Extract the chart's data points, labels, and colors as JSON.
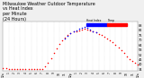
{
  "title": "Milwaukee Weather Outdoor Temperature\nvs Heat Index\nper Minute\n(24 Hours)",
  "title_fontsize": 3.5,
  "bg_color": "#f0f0f0",
  "plot_bg_color": "#ffffff",
  "temp_color": "#ff0000",
  "heat_color": "#0000ff",
  "legend_temp_label": "Temp",
  "legend_heat_label": "Heat Index",
  "ylabel_right_ticks": [
    34,
    40,
    46,
    52,
    58,
    64,
    70,
    76,
    82,
    88
  ],
  "ylim": [
    32,
    92
  ],
  "xlim": [
    0,
    1440
  ],
  "grid_color": "#cccccc",
  "temp_data_x": [
    0,
    30,
    60,
    90,
    120,
    150,
    180,
    210,
    240,
    270,
    300,
    330,
    360,
    390,
    420,
    450,
    480,
    510,
    540,
    570,
    600,
    630,
    660,
    690,
    720,
    750,
    780,
    810,
    840,
    870,
    900,
    930,
    960,
    990,
    1020,
    1050,
    1080,
    1110,
    1140,
    1170,
    1200,
    1230,
    1260,
    1290,
    1320,
    1350,
    1380,
    1410,
    1440
  ],
  "temp_data_y": [
    36,
    36,
    35,
    35,
    35,
    35,
    35,
    35,
    35,
    35,
    35,
    35,
    35,
    35,
    35,
    38,
    42,
    48,
    54,
    60,
    65,
    70,
    73,
    76,
    78,
    80,
    81,
    82,
    83,
    84,
    83,
    82,
    80,
    79,
    77,
    76,
    74,
    72,
    70,
    67,
    64,
    61,
    58,
    54,
    50,
    47,
    44,
    42,
    40
  ],
  "heat_data_x": [
    660,
    690,
    720,
    750,
    780,
    810,
    840,
    870,
    900,
    930,
    960,
    990
  ],
  "heat_data_y": [
    72,
    75,
    78,
    80,
    82,
    84,
    85,
    86,
    85,
    83,
    81,
    79
  ],
  "dot_size": 1.2,
  "xtick_positions": [
    0,
    60,
    120,
    180,
    240,
    300,
    360,
    420,
    480,
    540,
    600,
    660,
    720,
    780,
    840,
    900,
    960,
    1020,
    1080,
    1140,
    1200,
    1260,
    1320,
    1380,
    1440
  ],
  "xtick_labels": [
    "12a",
    "1",
    "2",
    "3",
    "4",
    "5",
    "6",
    "7",
    "8",
    "9",
    "10",
    "11",
    "12p",
    "1",
    "2",
    "3",
    "4",
    "5",
    "6",
    "7",
    "8",
    "9",
    "10",
    "11",
    "12a"
  ]
}
